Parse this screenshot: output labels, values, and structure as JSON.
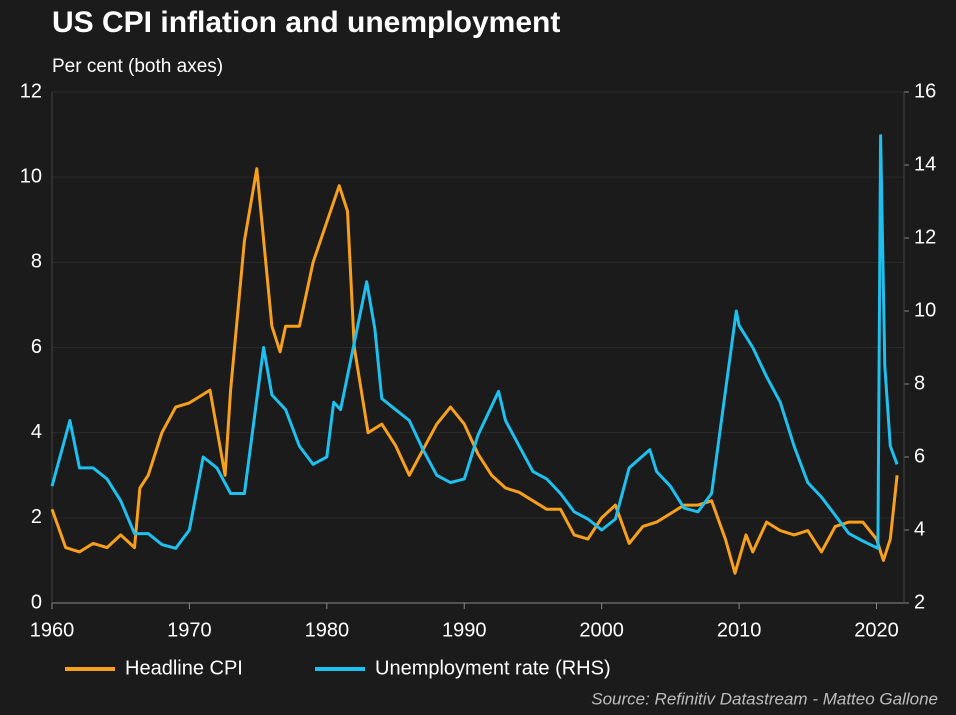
{
  "chart_data": {
    "type": "line",
    "title": "US CPI inflation and unemployment",
    "subtitle": "Per cent (both axes)",
    "source": "Source: Refinitiv Datastream - Matteo Gallone",
    "xlim": [
      1960,
      2022
    ],
    "xticks": [
      1960,
      1970,
      1980,
      1990,
      2000,
      2010,
      2020
    ],
    "ylim": [
      0,
      12
    ],
    "yticks": [
      0,
      2,
      4,
      6,
      8,
      10,
      12
    ],
    "y2lim": [
      2,
      16
    ],
    "y2ticks": [
      2,
      4,
      6,
      8,
      10,
      12,
      14,
      16
    ],
    "grid": true,
    "series": [
      {
        "name": "Headline CPI",
        "color": "#f7a01d",
        "axis": "y",
        "x": [
          1960,
          1961,
          1962,
          1963,
          1964,
          1965,
          1966,
          1966.4,
          1967,
          1968,
          1969,
          1970,
          1971.5,
          1972.6,
          1973,
          1974,
          1974.9,
          1976,
          1976.6,
          1977,
          1978,
          1979,
          1980.9,
          1981.5,
          1982,
          1983,
          1984,
          1985,
          1986,
          1987,
          1988,
          1989,
          1990,
          1991,
          1992,
          1993,
          1994,
          1995,
          1996,
          1997,
          1998,
          1999,
          2000,
          2001,
          2002,
          2003,
          2004,
          2005,
          2006,
          2007,
          2008,
          2009,
          2009.7,
          2010.5,
          2011,
          2012,
          2013,
          2014,
          2015,
          2016,
          2017,
          2018,
          2019,
          2020,
          2020.5,
          2021,
          2021.5
        ],
        "values": [
          2.2,
          1.3,
          1.2,
          1.4,
          1.3,
          1.6,
          1.3,
          2.7,
          3.0,
          4.0,
          4.6,
          4.7,
          5.0,
          3.0,
          5.0,
          8.5,
          10.2,
          6.5,
          5.9,
          6.5,
          6.5,
          8.0,
          9.8,
          9.2,
          6.0,
          4.0,
          4.2,
          3.7,
          3.0,
          3.6,
          4.2,
          4.6,
          4.2,
          3.5,
          3.0,
          2.7,
          2.6,
          2.4,
          2.2,
          2.2,
          1.6,
          1.5,
          2.0,
          2.3,
          1.4,
          1.8,
          1.9,
          2.1,
          2.3,
          2.3,
          2.4,
          1.5,
          0.7,
          1.6,
          1.2,
          1.9,
          1.7,
          1.6,
          1.7,
          1.2,
          1.8,
          1.9,
          1.9,
          1.5,
          1.0,
          1.5,
          3.0
        ]
      },
      {
        "name": "Unemployment rate (RHS)",
        "color": "#1ec0ef",
        "axis": "y2",
        "x": [
          1960,
          1961.3,
          1962,
          1963,
          1964,
          1965,
          1966,
          1967,
          1968,
          1969,
          1970,
          1970.5,
          1971,
          1972,
          1973,
          1974,
          1975.4,
          1976,
          1977,
          1978,
          1979,
          1980,
          1980.5,
          1981,
          1982.9,
          1983.5,
          1984,
          1985,
          1986,
          1987,
          1988,
          1989,
          1990,
          1991,
          1992.5,
          1993,
          1994,
          1995,
          1996,
          1997,
          1998,
          1999,
          2000,
          2001,
          2002,
          2003.5,
          2004,
          2005,
          2006,
          2007,
          2008,
          2009,
          2009.8,
          2010,
          2011,
          2012,
          2013,
          2014,
          2015,
          2016,
          2017,
          2018,
          2019,
          2020.1,
          2020.3,
          2020.6,
          2021,
          2021.5
        ],
        "values": [
          5.2,
          7.0,
          5.7,
          5.7,
          5.4,
          4.8,
          3.9,
          3.9,
          3.6,
          3.5,
          4.0,
          5.0,
          6.0,
          5.7,
          5.0,
          5.0,
          9.0,
          7.7,
          7.3,
          6.3,
          5.8,
          6.0,
          7.5,
          7.3,
          10.8,
          9.5,
          7.6,
          7.3,
          7.0,
          6.2,
          5.5,
          5.3,
          5.4,
          6.6,
          7.8,
          7.0,
          6.3,
          5.6,
          5.4,
          5.0,
          4.5,
          4.3,
          4.0,
          4.3,
          5.7,
          6.2,
          5.6,
          5.2,
          4.6,
          4.5,
          5.0,
          7.8,
          10.0,
          9.6,
          9.0,
          8.2,
          7.5,
          6.3,
          5.3,
          4.9,
          4.4,
          3.9,
          3.7,
          3.5,
          14.8,
          8.5,
          6.3,
          5.8
        ]
      }
    ]
  }
}
